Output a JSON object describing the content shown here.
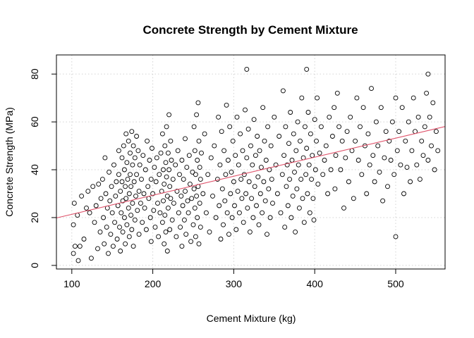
{
  "chart_data": {
    "type": "scatter",
    "title": "Concrete Strength by Cement Mixture",
    "xlabel": "Cement Mixture (kg)",
    "ylabel": "Concrete Strength (MPa)",
    "xlim": [
      81,
      561
    ],
    "ylim": [
      -1.5,
      88
    ],
    "xticks": [
      100,
      200,
      300,
      400,
      500
    ],
    "yticks": [
      0,
      20,
      40,
      60,
      80
    ],
    "grid": true,
    "fit_line": {
      "intercept": 13.4,
      "slope": 0.0796,
      "color": "#DF536B"
    },
    "point_color": "#000000",
    "points": [
      [
        102,
        5
      ],
      [
        102,
        17
      ],
      [
        103,
        26
      ],
      [
        104,
        8
      ],
      [
        107,
        21
      ],
      [
        108,
        2
      ],
      [
        110,
        8
      ],
      [
        112,
        29
      ],
      [
        115,
        11
      ],
      [
        118,
        24
      ],
      [
        120,
        31
      ],
      [
        122,
        22
      ],
      [
        124,
        3
      ],
      [
        126,
        33
      ],
      [
        128,
        18
      ],
      [
        130,
        25
      ],
      [
        132,
        7
      ],
      [
        133,
        34
      ],
      [
        135,
        14
      ],
      [
        136,
        28
      ],
      [
        138,
        36
      ],
      [
        139,
        20
      ],
      [
        140,
        9
      ],
      [
        141,
        45
      ],
      [
        142,
        30
      ],
      [
        143,
        16
      ],
      [
        144,
        24
      ],
      [
        145,
        5
      ],
      [
        146,
        39
      ],
      [
        147,
        27
      ],
      [
        148,
        13
      ],
      [
        149,
        33
      ],
      [
        150,
        22
      ],
      [
        151,
        8
      ],
      [
        152,
        42
      ],
      [
        153,
        18
      ],
      [
        154,
        29
      ],
      [
        155,
        35
      ],
      [
        156,
        11
      ],
      [
        157,
        25
      ],
      [
        158,
        48
      ],
      [
        158,
        38
      ],
      [
        159,
        16
      ],
      [
        160,
        31
      ],
      [
        160,
        6
      ],
      [
        161,
        22
      ],
      [
        162,
        45
      ],
      [
        162,
        35
      ],
      [
        163,
        27
      ],
      [
        163,
        14
      ],
      [
        164,
        50
      ],
      [
        165,
        40
      ],
      [
        165,
        20
      ],
      [
        166,
        33
      ],
      [
        166,
        9
      ],
      [
        167,
        55
      ],
      [
        167,
        28
      ],
      [
        168,
        43
      ],
      [
        168,
        17
      ],
      [
        169,
        36
      ],
      [
        170,
        52
      ],
      [
        170,
        24
      ],
      [
        171,
        30
      ],
      [
        171,
        12
      ],
      [
        172,
        47
      ],
      [
        172,
        38
      ],
      [
        173,
        21
      ],
      [
        173,
        33
      ],
      [
        174,
        56
      ],
      [
        174,
        15
      ],
      [
        175,
        42
      ],
      [
        175,
        26
      ],
      [
        176,
        50
      ],
      [
        176,
        8
      ],
      [
        177,
        35
      ],
      [
        178,
        45
      ],
      [
        178,
        19
      ],
      [
        179,
        29
      ],
      [
        180,
        38
      ],
      [
        180,
        54
      ],
      [
        181,
        23
      ],
      [
        182,
        48
      ],
      [
        183,
        31
      ],
      [
        183,
        13
      ],
      [
        184,
        42
      ],
      [
        185,
        26
      ],
      [
        186,
        36
      ],
      [
        187,
        18
      ],
      [
        188,
        46
      ],
      [
        189,
        30
      ],
      [
        190,
        24
      ],
      [
        191,
        40
      ],
      [
        192,
        15
      ],
      [
        193,
        52
      ],
      [
        194,
        33
      ],
      [
        195,
        28
      ],
      [
        196,
        44
      ],
      [
        197,
        20
      ],
      [
        198,
        36
      ],
      [
        198,
        10
      ],
      [
        199,
        49
      ],
      [
        200,
        30
      ],
      [
        201,
        23
      ],
      [
        202,
        41
      ],
      [
        203,
        16
      ],
      [
        204,
        35
      ],
      [
        205,
        45
      ],
      [
        206,
        26
      ],
      [
        207,
        12
      ],
      [
        208,
        38
      ],
      [
        209,
        22
      ],
      [
        210,
        47
      ],
      [
        211,
        31
      ],
      [
        212,
        18
      ],
      [
        212,
        55
      ],
      [
        213,
        40
      ],
      [
        213,
        27
      ],
      [
        214,
        9
      ],
      [
        214,
        34
      ],
      [
        215,
        50
      ],
      [
        215,
        21
      ],
      [
        216,
        43
      ],
      [
        216,
        14
      ],
      [
        217,
        37
      ],
      [
        217,
        58
      ],
      [
        218,
        29
      ],
      [
        218,
        6
      ],
      [
        219,
        47
      ],
      [
        219,
        24
      ],
      [
        220,
        40
      ],
      [
        220,
        63
      ],
      [
        221,
        33
      ],
      [
        221,
        15
      ],
      [
        222,
        52
      ],
      [
        222,
        28
      ],
      [
        223,
        44
      ],
      [
        224,
        19
      ],
      [
        225,
        36
      ],
      [
        226,
        26
      ],
      [
        228,
        42
      ],
      [
        229,
        12
      ],
      [
        230,
        31
      ],
      [
        231,
        48
      ],
      [
        232,
        22
      ],
      [
        233,
        38
      ],
      [
        234,
        16
      ],
      [
        235,
        29
      ],
      [
        236,
        44
      ],
      [
        236,
        8
      ],
      [
        237,
        25
      ],
      [
        238,
        36
      ],
      [
        239,
        19
      ],
      [
        240,
        53
      ],
      [
        240,
        31
      ],
      [
        241,
        13
      ],
      [
        242,
        41
      ],
      [
        243,
        27
      ],
      [
        244,
        22
      ],
      [
        245,
        46
      ],
      [
        246,
        34
      ],
      [
        247,
        10
      ],
      [
        248,
        28
      ],
      [
        249,
        39
      ],
      [
        250,
        17
      ],
      [
        251,
        58
      ],
      [
        251,
        32
      ],
      [
        252,
        24
      ],
      [
        252,
        48
      ],
      [
        253,
        12
      ],
      [
        253,
        38
      ],
      [
        254,
        63
      ],
      [
        254,
        29
      ],
      [
        255,
        44
      ],
      [
        255,
        20
      ],
      [
        256,
        68
      ],
      [
        256,
        33
      ],
      [
        257,
        52
      ],
      [
        257,
        9
      ],
      [
        258,
        41
      ],
      [
        258,
        26
      ],
      [
        259,
        36
      ],
      [
        259,
        16
      ],
      [
        260,
        47
      ],
      [
        262,
        30
      ],
      [
        264,
        55
      ],
      [
        266,
        22
      ],
      [
        268,
        38
      ],
      [
        270,
        14
      ],
      [
        272,
        45
      ],
      [
        274,
        29
      ],
      [
        276,
        50
      ],
      [
        278,
        20
      ],
      [
        280,
        36
      ],
      [
        281,
        62
      ],
      [
        282,
        25
      ],
      [
        283,
        42
      ],
      [
        284,
        11
      ],
      [
        285,
        56
      ],
      [
        286,
        32
      ],
      [
        287,
        17
      ],
      [
        288,
        48
      ],
      [
        289,
        27
      ],
      [
        290,
        38
      ],
      [
        291,
        67
      ],
      [
        292,
        22
      ],
      [
        293,
        44
      ],
      [
        294,
        13
      ],
      [
        295,
        58
      ],
      [
        296,
        30
      ],
      [
        297,
        39
      ],
      [
        298,
        20
      ],
      [
        299,
        52
      ],
      [
        300,
        35
      ],
      [
        301,
        25
      ],
      [
        302,
        46
      ],
      [
        303,
        15
      ],
      [
        304,
        62
      ],
      [
        305,
        31
      ],
      [
        306,
        42
      ],
      [
        307,
        22
      ],
      [
        308,
        55
      ],
      [
        309,
        36
      ],
      [
        310,
        28
      ],
      [
        311,
        48
      ],
      [
        312,
        18
      ],
      [
        313,
        38
      ],
      [
        314,
        65
      ],
      [
        315,
        30
      ],
      [
        316,
        82
      ],
      [
        316,
        45
      ],
      [
        317,
        24
      ],
      [
        318,
        57
      ],
      [
        319,
        35
      ],
      [
        320,
        14
      ],
      [
        321,
        50
      ],
      [
        322,
        28
      ],
      [
        323,
        42
      ],
      [
        324,
        20
      ],
      [
        325,
        61
      ],
      [
        326,
        33
      ],
      [
        327,
        46
      ],
      [
        328,
        25
      ],
      [
        329,
        54
      ],
      [
        330,
        37
      ],
      [
        331,
        17
      ],
      [
        332,
        48
      ],
      [
        333,
        30
      ],
      [
        334,
        41
      ],
      [
        335,
        22
      ],
      [
        336,
        66
      ],
      [
        337,
        35
      ],
      [
        338,
        52
      ],
      [
        339,
        27
      ],
      [
        340,
        44
      ],
      [
        341,
        13
      ],
      [
        342,
        58
      ],
      [
        343,
        32
      ],
      [
        344,
        40
      ],
      [
        345,
        20
      ],
      [
        346,
        50
      ],
      [
        347,
        36
      ],
      [
        348,
        26
      ],
      [
        350,
        62
      ],
      [
        352,
        42
      ],
      [
        354,
        30
      ],
      [
        356,
        54
      ],
      [
        358,
        22
      ],
      [
        360,
        38
      ],
      [
        361,
        73
      ],
      [
        362,
        46
      ],
      [
        363,
        16
      ],
      [
        364,
        58
      ],
      [
        365,
        33
      ],
      [
        366,
        42
      ],
      [
        367,
        25
      ],
      [
        368,
        51
      ],
      [
        369,
        36
      ],
      [
        370,
        64
      ],
      [
        371,
        20
      ],
      [
        372,
        44
      ],
      [
        373,
        29
      ],
      [
        374,
        55
      ],
      [
        375,
        39
      ],
      [
        376,
        14
      ],
      [
        377,
        48
      ],
      [
        378,
        32
      ],
      [
        379,
        60
      ],
      [
        380,
        42
      ],
      [
        381,
        24
      ],
      [
        382,
        52
      ],
      [
        383,
        36
      ],
      [
        384,
        70
      ],
      [
        385,
        28
      ],
      [
        386,
        45
      ],
      [
        387,
        18
      ],
      [
        388,
        58
      ],
      [
        389,
        38
      ],
      [
        390,
        82
      ],
      [
        390,
        49
      ],
      [
        391,
        30
      ],
      [
        392,
        64
      ],
      [
        393,
        42
      ],
      [
        394,
        22
      ],
      [
        395,
        55
      ],
      [
        396,
        36
      ],
      [
        397,
        46
      ],
      [
        398,
        28
      ],
      [
        399,
        19
      ],
      [
        400,
        61
      ],
      [
        401,
        40
      ],
      [
        402,
        52
      ],
      [
        403,
        70
      ],
      [
        404,
        34
      ],
      [
        406,
        47
      ],
      [
        408,
        58
      ],
      [
        410,
        38
      ],
      [
        412,
        44
      ],
      [
        414,
        50
      ],
      [
        416,
        30
      ],
      [
        418,
        62
      ],
      [
        420,
        40
      ],
      [
        422,
        54
      ],
      [
        424,
        66
      ],
      [
        425,
        32
      ],
      [
        426,
        46
      ],
      [
        428,
        72
      ],
      [
        430,
        58
      ],
      [
        432,
        40
      ],
      [
        434,
        52
      ],
      [
        436,
        24
      ],
      [
        438,
        45
      ],
      [
        440,
        56
      ],
      [
        442,
        35
      ],
      [
        444,
        62
      ],
      [
        446,
        48
      ],
      [
        448,
        28
      ],
      [
        450,
        52
      ],
      [
        452,
        70
      ],
      [
        454,
        44
      ],
      [
        456,
        58
      ],
      [
        458,
        38
      ],
      [
        460,
        66
      ],
      [
        462,
        50
      ],
      [
        464,
        30
      ],
      [
        466,
        55
      ],
      [
        468,
        42
      ],
      [
        470,
        74
      ],
      [
        472,
        46
      ],
      [
        474,
        35
      ],
      [
        476,
        60
      ],
      [
        478,
        50
      ],
      [
        480,
        39
      ],
      [
        482,
        66
      ],
      [
        484,
        27
      ],
      [
        486,
        45
      ],
      [
        488,
        56
      ],
      [
        490,
        33
      ],
      [
        492,
        52
      ],
      [
        494,
        44
      ],
      [
        496,
        60
      ],
      [
        498,
        38
      ],
      [
        500,
        12
      ],
      [
        500,
        70
      ],
      [
        502,
        48
      ],
      [
        504,
        56
      ],
      [
        506,
        42
      ],
      [
        508,
        66
      ],
      [
        510,
        30
      ],
      [
        512,
        52
      ],
      [
        514,
        41
      ],
      [
        516,
        60
      ],
      [
        518,
        35
      ],
      [
        520,
        48
      ],
      [
        522,
        70
      ],
      [
        524,
        56
      ],
      [
        526,
        42
      ],
      [
        528,
        62
      ],
      [
        530,
        36
      ],
      [
        532,
        52
      ],
      [
        534,
        46
      ],
      [
        536,
        58
      ],
      [
        538,
        72
      ],
      [
        540,
        80
      ],
      [
        540,
        44
      ],
      [
        542,
        62
      ],
      [
        544,
        50
      ],
      [
        546,
        68
      ],
      [
        548,
        40
      ],
      [
        550,
        56
      ],
      [
        552,
        48
      ]
    ]
  }
}
